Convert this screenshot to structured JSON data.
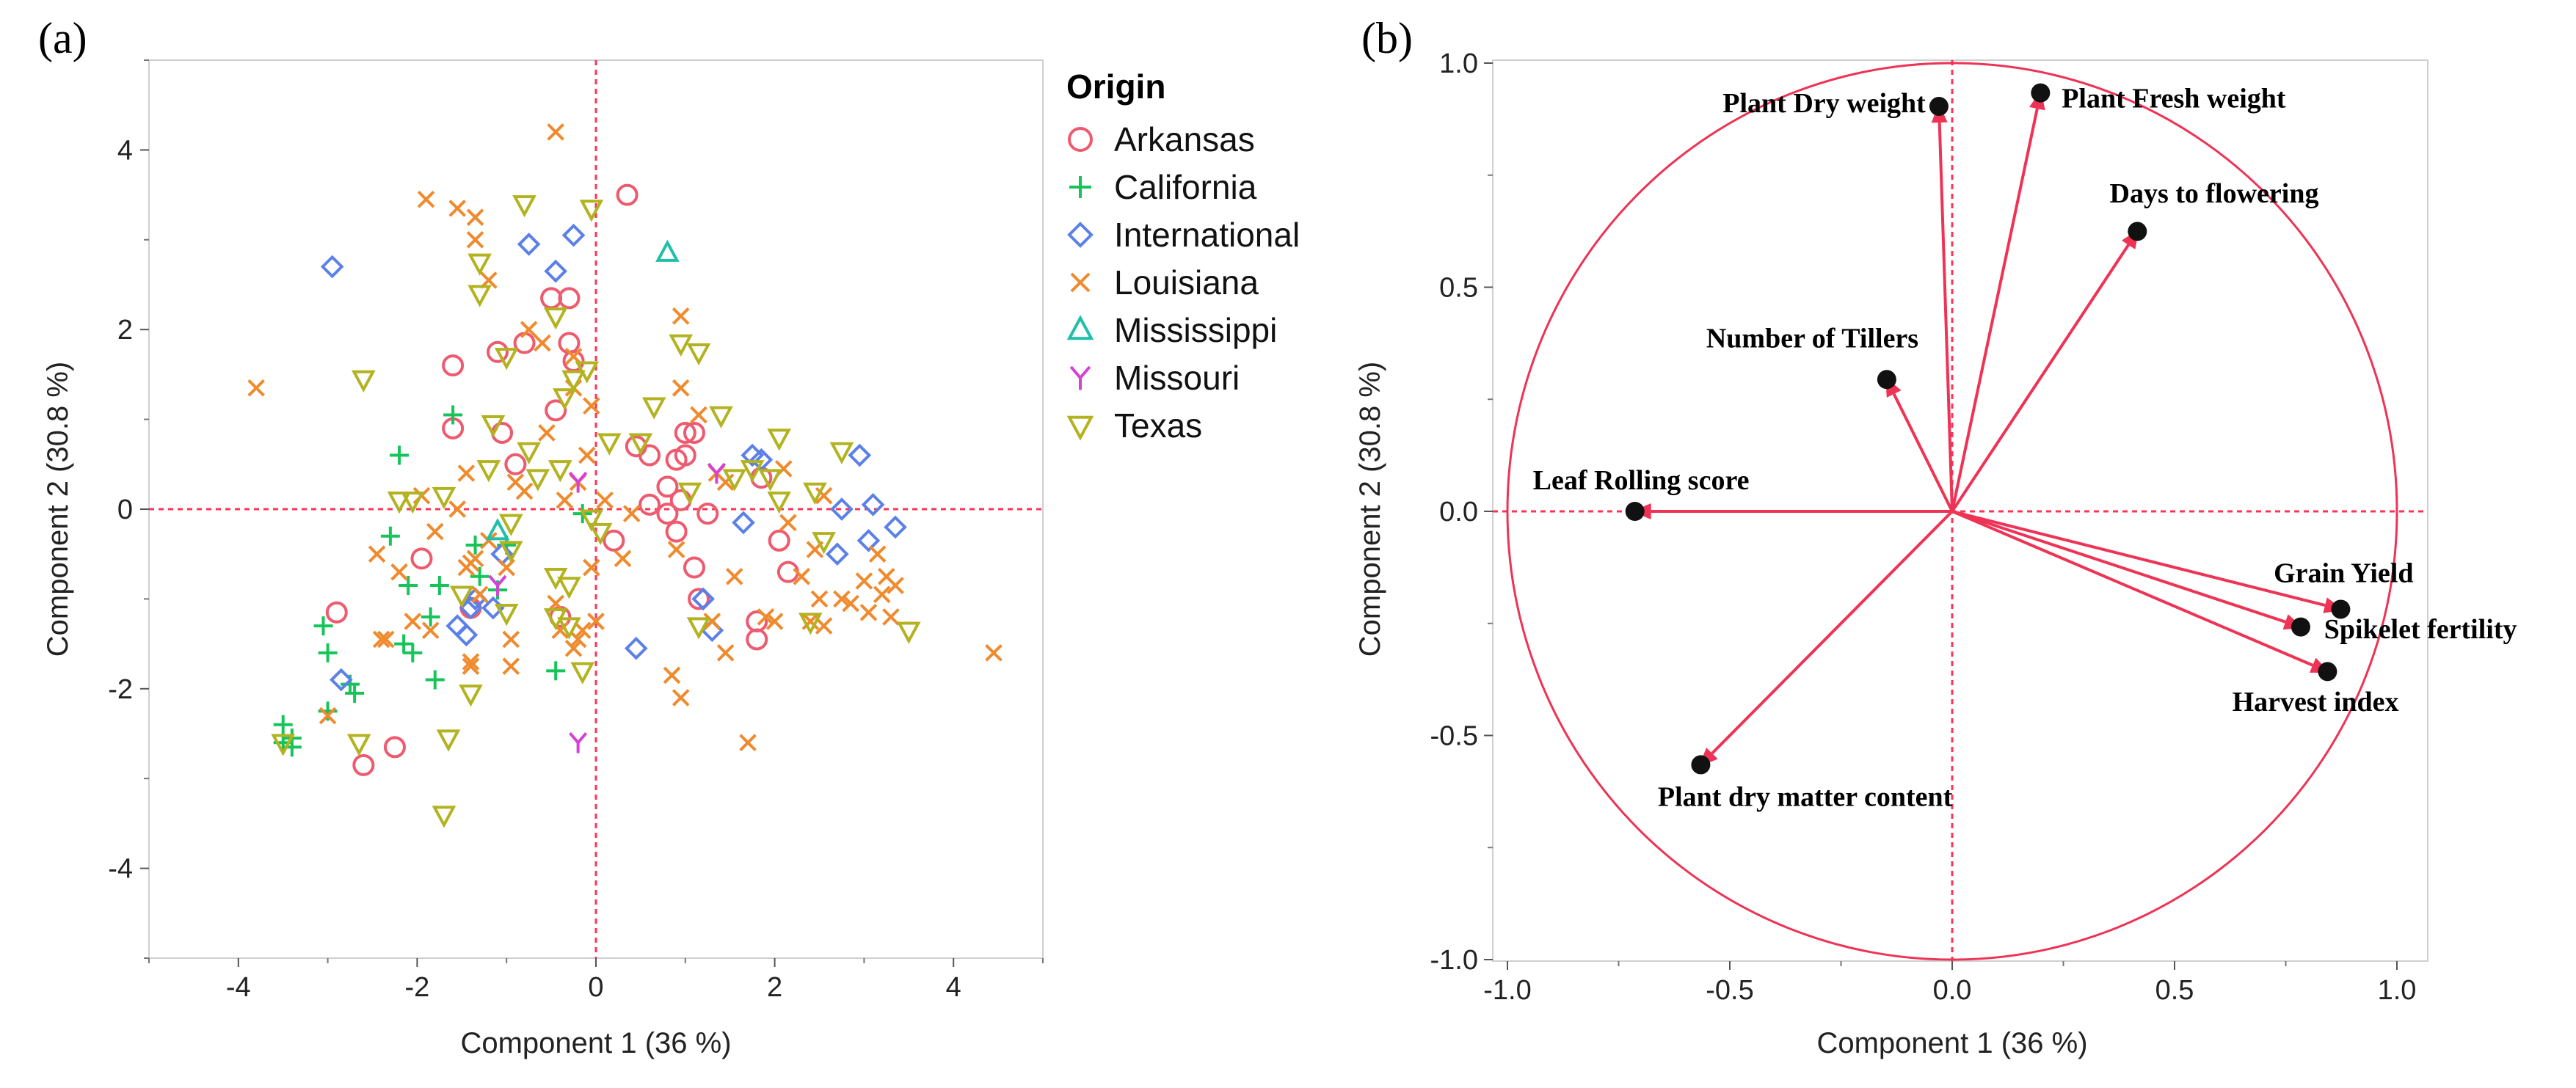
{
  "chart_data": [
    {
      "panel": "(a)",
      "type": "scatter",
      "title": "",
      "xlabel": "Component 1  (36 %)",
      "ylabel": "Component 2  (30.8 %)",
      "xlim": [
        -5,
        5
      ],
      "ylim": [
        -5,
        5
      ],
      "xticks": [
        "-4",
        "-2",
        "0",
        "2",
        "4"
      ],
      "yticks": [
        "-4",
        "-2",
        "0",
        "2",
        "4"
      ],
      "legend_title": "Origin",
      "legend_position": "right",
      "colors": {
        "Arkansas": "#ee5a6e",
        "California": "#16c45a",
        "International": "#5b80e8",
        "Louisiana": "#ef8a2d",
        "Mississippi": "#1fbfa8",
        "Missouri": "#d640d6",
        "Texas": "#b3b321",
        "reference": "#ff3355"
      },
      "series": [
        {
          "name": "Arkansas",
          "marker": "circle",
          "points": [
            [
              0.35,
              3.5
            ],
            [
              -0.5,
              2.35
            ],
            [
              -0.3,
              2.35
            ],
            [
              -0.3,
              1.85
            ],
            [
              -0.25,
              1.65
            ],
            [
              -1.6,
              1.6
            ],
            [
              -1.6,
              0.9
            ],
            [
              -0.8,
              1.85
            ],
            [
              -1.1,
              1.75
            ],
            [
              -0.45,
              1.1
            ],
            [
              -1.05,
              0.85
            ],
            [
              -0.9,
              0.5
            ],
            [
              0.45,
              0.7
            ],
            [
              0.6,
              0.6
            ],
            [
              1.0,
              0.85
            ],
            [
              1.1,
              0.85
            ],
            [
              0.9,
              0.55
            ],
            [
              1.0,
              0.6
            ],
            [
              0.8,
              0.25
            ],
            [
              0.95,
              0.1
            ],
            [
              0.8,
              -0.05
            ],
            [
              1.25,
              -0.05
            ],
            [
              0.2,
              -0.35
            ],
            [
              0.6,
              0.05
            ],
            [
              2.05,
              -0.35
            ],
            [
              2.15,
              -0.7
            ],
            [
              1.1,
              -0.65
            ],
            [
              1.15,
              -1.0
            ],
            [
              -2.9,
              -1.15
            ],
            [
              1.8,
              -1.25
            ],
            [
              1.8,
              -1.45
            ],
            [
              -2.25,
              -2.65
            ],
            [
              -2.6,
              -2.85
            ],
            [
              -1.95,
              -0.55
            ],
            [
              -0.4,
              -1.2
            ],
            [
              -1.4,
              -1.1
            ],
            [
              1.85,
              0.35
            ],
            [
              0.9,
              -0.25
            ]
          ]
        },
        {
          "name": "California",
          "marker": "plus",
          "points": [
            [
              -2.2,
              0.6
            ],
            [
              -1.6,
              1.05
            ],
            [
              -2.3,
              -0.3
            ],
            [
              -2.1,
              -0.85
            ],
            [
              -1.35,
              -0.4
            ],
            [
              -1.0,
              -0.4
            ],
            [
              -1.3,
              -0.75
            ],
            [
              -1.1,
              -0.9
            ],
            [
              -1.75,
              -0.85
            ],
            [
              -1.85,
              -1.2
            ],
            [
              -2.15,
              -1.5
            ],
            [
              -2.05,
              -1.6
            ],
            [
              -3.0,
              -1.6
            ],
            [
              -3.05,
              -1.3
            ],
            [
              -2.75,
              -1.95
            ],
            [
              -2.7,
              -2.05
            ],
            [
              -1.8,
              -1.9
            ],
            [
              -3.5,
              -2.4
            ],
            [
              -3.5,
              -2.6
            ],
            [
              -3.4,
              -2.55
            ],
            [
              -3.4,
              -2.65
            ],
            [
              -3.0,
              -2.25
            ],
            [
              -0.45,
              -1.8
            ],
            [
              -0.15,
              -0.05
            ]
          ]
        },
        {
          "name": "International",
          "marker": "diamond",
          "points": [
            [
              -2.95,
              2.7
            ],
            [
              -0.25,
              3.05
            ],
            [
              -0.75,
              2.95
            ],
            [
              -0.45,
              2.65
            ],
            [
              1.75,
              0.6
            ],
            [
              1.85,
              0.55
            ],
            [
              2.95,
              0.6
            ],
            [
              2.75,
              0.0
            ],
            [
              3.1,
              0.05
            ],
            [
              3.35,
              -0.2
            ],
            [
              3.05,
              -0.35
            ],
            [
              2.7,
              -0.5
            ],
            [
              1.65,
              -0.15
            ],
            [
              1.2,
              -1.0
            ],
            [
              1.3,
              -1.35
            ],
            [
              0.45,
              -1.55
            ],
            [
              -1.05,
              -0.5
            ],
            [
              -1.35,
              -1.0
            ],
            [
              -1.4,
              -1.1
            ],
            [
              -1.45,
              -1.4
            ],
            [
              -1.55,
              -1.3
            ],
            [
              -1.15,
              -1.1
            ],
            [
              -2.85,
              -1.9
            ]
          ]
        },
        {
          "name": "Louisiana",
          "marker": "x",
          "points": [
            [
              -3.8,
              1.35
            ],
            [
              -0.45,
              4.2
            ],
            [
              -1.9,
              3.45
            ],
            [
              -1.55,
              3.35
            ],
            [
              -1.35,
              3.25
            ],
            [
              -1.35,
              3.0
            ],
            [
              -1.2,
              2.55
            ],
            [
              -0.75,
              2.0
            ],
            [
              -0.6,
              1.85
            ],
            [
              -0.25,
              1.7
            ],
            [
              -0.25,
              1.35
            ],
            [
              -0.05,
              1.15
            ],
            [
              -0.55,
              0.85
            ],
            [
              -0.9,
              0.3
            ],
            [
              -1.45,
              0.4
            ],
            [
              -1.95,
              0.15
            ],
            [
              -1.8,
              -0.25
            ],
            [
              -1.55,
              0.0
            ],
            [
              -0.8,
              0.2
            ],
            [
              -0.35,
              0.1
            ],
            [
              -0.2,
              0.3
            ],
            [
              -0.1,
              0.6
            ],
            [
              0.1,
              0.1
            ],
            [
              0.95,
              2.15
            ],
            [
              0.95,
              1.35
            ],
            [
              1.15,
              1.05
            ],
            [
              1.45,
              0.3
            ],
            [
              1.35,
              0.4
            ],
            [
              1.55,
              -0.75
            ],
            [
              1.3,
              -1.25
            ],
            [
              1.45,
              -1.6
            ],
            [
              1.7,
              -2.6
            ],
            [
              1.9,
              -1.2
            ],
            [
              2.0,
              -1.25
            ],
            [
              2.3,
              -0.75
            ],
            [
              2.4,
              -1.25
            ],
            [
              2.45,
              -0.45
            ],
            [
              2.5,
              -1.0
            ],
            [
              2.55,
              -1.3
            ],
            [
              2.75,
              -1.0
            ],
            [
              2.85,
              -1.05
            ],
            [
              3.0,
              -0.8
            ],
            [
              3.15,
              -0.5
            ],
            [
              3.2,
              -0.95
            ],
            [
              3.25,
              -0.75
            ],
            [
              3.35,
              -0.85
            ],
            [
              3.3,
              -1.2
            ],
            [
              3.05,
              -1.15
            ],
            [
              2.55,
              0.15
            ],
            [
              2.1,
              0.45
            ],
            [
              2.15,
              -0.15
            ],
            [
              4.45,
              -1.6
            ],
            [
              -2.2,
              -0.7
            ],
            [
              -2.45,
              -0.5
            ],
            [
              -2.4,
              -1.45
            ],
            [
              -2.35,
              -1.45
            ],
            [
              -1.85,
              -1.35
            ],
            [
              -1.45,
              -0.65
            ],
            [
              -1.4,
              -0.6
            ],
            [
              -1.35,
              -0.55
            ],
            [
              -1.3,
              -0.95
            ],
            [
              -1.4,
              -1.7
            ],
            [
              -0.95,
              -1.45
            ],
            [
              -0.95,
              -1.75
            ],
            [
              -1.0,
              -0.65
            ],
            [
              -0.45,
              -1.05
            ],
            [
              -0.25,
              -1.55
            ],
            [
              -0.2,
              -1.45
            ],
            [
              -0.15,
              -1.35
            ],
            [
              -0.4,
              -1.35
            ],
            [
              0.0,
              -1.25
            ],
            [
              -0.05,
              -0.65
            ],
            [
              0.3,
              -0.55
            ],
            [
              0.4,
              -0.05
            ],
            [
              0.85,
              -1.85
            ],
            [
              0.95,
              -2.1
            ],
            [
              0.9,
              -0.45
            ],
            [
              -3.0,
              -2.3
            ],
            [
              -2.05,
              -1.25
            ],
            [
              -1.2,
              -0.35
            ],
            [
              -1.4,
              -1.75
            ]
          ]
        },
        {
          "name": "Mississippi",
          "marker": "triangle-up",
          "points": [
            [
              0.8,
              2.85
            ],
            [
              -1.1,
              -0.25
            ]
          ]
        },
        {
          "name": "Missouri",
          "marker": "y",
          "points": [
            [
              -0.2,
              0.3
            ],
            [
              1.35,
              0.4
            ],
            [
              -1.1,
              -0.85
            ],
            [
              -0.2,
              -2.6
            ]
          ]
        },
        {
          "name": "Texas",
          "marker": "triangle-down",
          "points": [
            [
              -0.8,
              3.4
            ],
            [
              -0.05,
              3.35
            ],
            [
              -1.3,
              2.75
            ],
            [
              -1.3,
              2.4
            ],
            [
              -0.45,
              2.15
            ],
            [
              -2.6,
              1.45
            ],
            [
              -1.0,
              1.7
            ],
            [
              -0.25,
              1.45
            ],
            [
              -0.1,
              1.55
            ],
            [
              -1.15,
              0.95
            ],
            [
              -0.35,
              1.25
            ],
            [
              -0.75,
              0.65
            ],
            [
              -0.4,
              0.45
            ],
            [
              -0.65,
              0.35
            ],
            [
              -1.2,
              0.45
            ],
            [
              -2.2,
              0.1
            ],
            [
              -2.05,
              0.1
            ],
            [
              -1.7,
              0.15
            ],
            [
              -0.95,
              -0.15
            ],
            [
              -0.95,
              -0.45
            ],
            [
              -0.45,
              -0.75
            ],
            [
              -0.3,
              -0.85
            ],
            [
              0.05,
              -0.25
            ],
            [
              -0.45,
              -1.2
            ],
            [
              -0.3,
              -1.3
            ],
            [
              -0.15,
              -1.8
            ],
            [
              -1.0,
              -1.15
            ],
            [
              -1.5,
              -0.95
            ],
            [
              -1.4,
              -2.05
            ],
            [
              -1.65,
              -2.55
            ],
            [
              -1.7,
              -3.4
            ],
            [
              0.15,
              0.75
            ],
            [
              0.5,
              0.75
            ],
            [
              0.65,
              1.15
            ],
            [
              0.95,
              1.85
            ],
            [
              1.15,
              1.75
            ],
            [
              1.05,
              0.2
            ],
            [
              1.4,
              1.05
            ],
            [
              1.75,
              0.45
            ],
            [
              1.95,
              0.35
            ],
            [
              2.05,
              0.8
            ],
            [
              2.05,
              0.1
            ],
            [
              2.45,
              0.2
            ],
            [
              2.55,
              -0.35
            ],
            [
              2.75,
              0.65
            ],
            [
              1.55,
              0.35
            ],
            [
              1.15,
              -1.3
            ],
            [
              2.4,
              -1.25
            ],
            [
              3.5,
              -1.35
            ],
            [
              -2.65,
              -2.6
            ],
            [
              -3.5,
              -2.6
            ],
            [
              -0.05,
              -0.1
            ]
          ]
        }
      ]
    },
    {
      "panel": "(b)",
      "type": "loading-plot",
      "title": "",
      "xlabel": "Component 1  (36 %)",
      "ylabel": "Component 2  (30.8 %)",
      "xlim": [
        -1.05,
        1.05
      ],
      "ylim": [
        -1.05,
        1.02
      ],
      "xticks": [
        "-1.0",
        "-0.5",
        "0.0",
        "0.5",
        "1.0"
      ],
      "yticks": [
        "1.0",
        "0.5",
        "0.0",
        "-0.5",
        "-1.0"
      ],
      "unit_circle": true,
      "vectors": [
        {
          "label": "Plant Dry weight",
          "x": -0.03,
          "y": 0.91
        },
        {
          "label": "Plant Fresh weight",
          "x": 0.2,
          "y": 0.94
        },
        {
          "label": "Days to flowering",
          "x": 0.42,
          "y": 0.63
        },
        {
          "label": "Number of Tillers",
          "x": -0.15,
          "y": 0.3
        },
        {
          "label": "Leaf Rolling score",
          "x": -0.72,
          "y": 0.0
        },
        {
          "label": "Grain Yield",
          "x": 0.88,
          "y": -0.22
        },
        {
          "label": "Spikelet fertility",
          "x": 0.79,
          "y": -0.26
        },
        {
          "label": "Harvest index",
          "x": 0.85,
          "y": -0.36
        },
        {
          "label": "Plant dry matter content",
          "x": -0.57,
          "y": -0.57
        }
      ]
    }
  ]
}
